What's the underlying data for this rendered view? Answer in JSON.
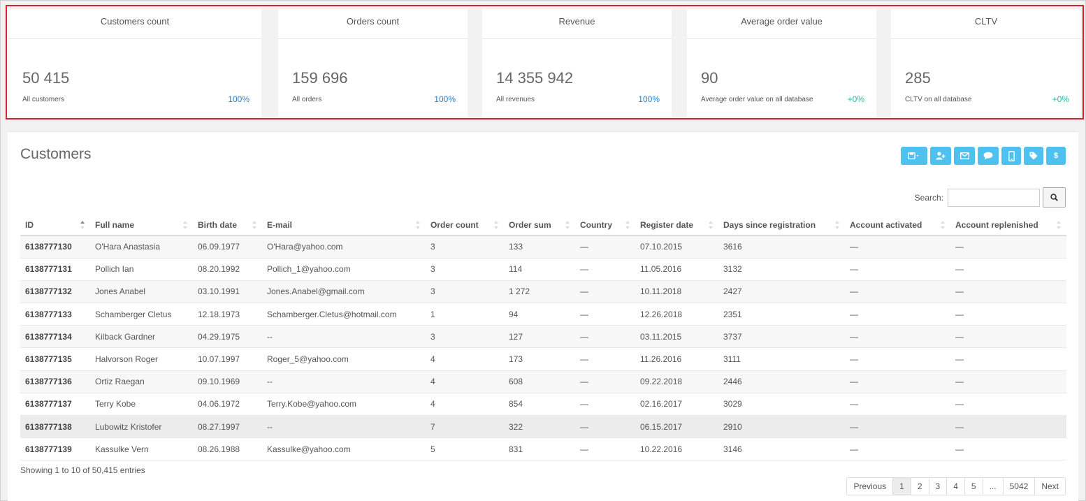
{
  "kpis": [
    {
      "title": "Customers count",
      "value": "50 415",
      "subtitle": "All customers",
      "percent": "100%"
    },
    {
      "title": "Orders count",
      "value": "159 696",
      "subtitle": "All orders",
      "percent": "100%"
    },
    {
      "title": "Revenue",
      "value": "14 355 942",
      "subtitle": "All revenues",
      "percent": "100%"
    },
    {
      "title": "Average order value",
      "value": "90",
      "subtitle": "Average order value on all database",
      "percent": "+0%"
    },
    {
      "title": "CLTV",
      "value": "285",
      "subtitle": "CLTV on all database",
      "percent": "+0%"
    }
  ],
  "panel": {
    "title": "Customers",
    "toolbar_icons": [
      "save-icon",
      "add-user-icon",
      "envelope-icon",
      "chat-icon",
      "mobile-icon",
      "tag-icon",
      "dollar-icon"
    ],
    "dollar_label": "$",
    "search_label": "Search:",
    "search_value": ""
  },
  "table": {
    "columns": [
      "ID",
      "Full name",
      "Birth date",
      "E-mail",
      "Order count",
      "Order sum",
      "Country",
      "Register date",
      "Days since registration",
      "Account activated",
      "Account replenished"
    ],
    "rows": [
      [
        "6138777130",
        "O'Hara Anastasia",
        "06.09.1977",
        "O'Hara@yahoo.com",
        "3",
        "133",
        "—",
        "07.10.2015",
        "3616",
        "—",
        "—"
      ],
      [
        "6138777131",
        "Pollich Ian",
        "08.20.1992",
        "Pollich_1@yahoo.com",
        "3",
        "114",
        "—",
        "11.05.2016",
        "3132",
        "—",
        "—"
      ],
      [
        "6138777132",
        "Jones Anabel",
        "03.10.1991",
        "Jones.Anabel@gmail.com",
        "3",
        "1 272",
        "—",
        "10.11.2018",
        "2427",
        "—",
        "—"
      ],
      [
        "6138777133",
        "Schamberger Cletus",
        "12.18.1973",
        "Schamberger.Cletus@hotmail.com",
        "1",
        "94",
        "—",
        "12.26.2018",
        "2351",
        "—",
        "—"
      ],
      [
        "6138777134",
        "Kilback Gardner",
        "04.29.1975",
        "--",
        "3",
        "127",
        "—",
        "03.11.2015",
        "3737",
        "—",
        "—"
      ],
      [
        "6138777135",
        "Halvorson Roger",
        "10.07.1997",
        "Roger_5@yahoo.com",
        "4",
        "173",
        "—",
        "11.26.2016",
        "3111",
        "—",
        "—"
      ],
      [
        "6138777136",
        "Ortiz Raegan",
        "09.10.1969",
        "--",
        "4",
        "608",
        "—",
        "09.22.2018",
        "2446",
        "—",
        "—"
      ],
      [
        "6138777137",
        "Terry Kobe",
        "04.06.1972",
        "Terry.Kobe@yahoo.com",
        "4",
        "854",
        "—",
        "02.16.2017",
        "3029",
        "—",
        "—"
      ],
      [
        "6138777138",
        "Lubowitz Kristofer",
        "08.27.1997",
        "--",
        "7",
        "322",
        "—",
        "06.15.2017",
        "2910",
        "—",
        "—"
      ],
      [
        "6138777139",
        "Kassulke Vern",
        "08.26.1988",
        "Kassulke@yahoo.com",
        "5",
        "831",
        "—",
        "10.22.2016",
        "3146",
        "—",
        "—"
      ]
    ],
    "info": "Showing 1 to 10 of 50,415 entries"
  },
  "pagination": {
    "previous": "Previous",
    "pages": [
      "1",
      "2",
      "3",
      "4",
      "5",
      "...",
      "5042"
    ],
    "next": "Next",
    "active": "1"
  },
  "colors": {
    "accent": "#4fc1ef",
    "highlight_border": "#d9202f",
    "percent_blue": "#2b7cc6",
    "percent_teal": "#25b4a8"
  }
}
